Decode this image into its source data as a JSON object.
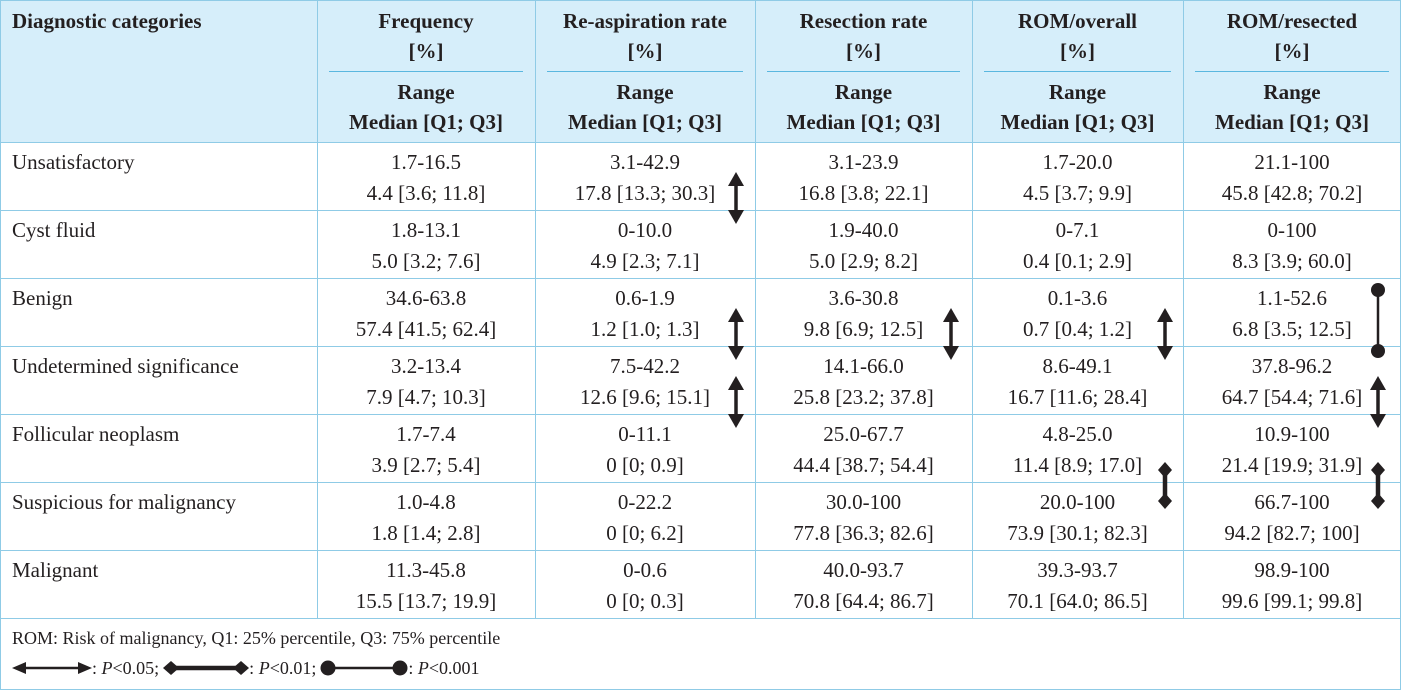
{
  "table": {
    "headers": [
      {
        "title": "Diagnostic categories",
        "unit": "",
        "sub1": "",
        "sub2": ""
      },
      {
        "title": "Frequency",
        "unit": "[%]",
        "sub1": "Range",
        "sub2": "Median [Q1; Q3]"
      },
      {
        "title": "Re-aspiration rate",
        "unit": "[%]",
        "sub1": "Range",
        "sub2": "Median [Q1; Q3]"
      },
      {
        "title": "Resection rate",
        "unit": "[%]",
        "sub1": "Range",
        "sub2": "Median [Q1; Q3]"
      },
      {
        "title": "ROM/overall",
        "unit": "[%]",
        "sub1": "Range",
        "sub2": "Median [Q1; Q3]"
      },
      {
        "title": "ROM/resected",
        "unit": "[%]",
        "sub1": "Range",
        "sub2": "Median [Q1; Q3]"
      }
    ],
    "rows": [
      {
        "category": "Unsatisfactory",
        "cells": [
          {
            "range": "1.7-16.5",
            "median": "4.4 [3.6; 11.8]"
          },
          {
            "range": "3.1-42.9",
            "median": "17.8 [13.3; 30.3]"
          },
          {
            "range": "3.1-23.9",
            "median": "16.8 [3.8; 22.1]"
          },
          {
            "range": "1.7-20.0",
            "median": "4.5 [3.7; 9.9]"
          },
          {
            "range": "21.1-100",
            "median": "45.8 [42.8; 70.2]"
          }
        ]
      },
      {
        "category": "Cyst fluid",
        "cells": [
          {
            "range": "1.8-13.1",
            "median": "5.0 [3.2; 7.6]"
          },
          {
            "range": "0-10.0",
            "median": "4.9 [2.3; 7.1]"
          },
          {
            "range": "1.9-40.0",
            "median": "5.0 [2.9; 8.2]"
          },
          {
            "range": "0-7.1",
            "median": "0.4 [0.1; 2.9]"
          },
          {
            "range": "0-100",
            "median": "8.3 [3.9; 60.0]"
          }
        ]
      },
      {
        "category": "Benign",
        "cells": [
          {
            "range": "34.6-63.8",
            "median": "57.4 [41.5; 62.4]"
          },
          {
            "range": "0.6-1.9",
            "median": "1.2 [1.0; 1.3]"
          },
          {
            "range": "3.6-30.8",
            "median": "9.8 [6.9; 12.5]"
          },
          {
            "range": "0.1-3.6",
            "median": "0.7 [0.4; 1.2]"
          },
          {
            "range": "1.1-52.6",
            "median": "6.8 [3.5; 12.5]"
          }
        ]
      },
      {
        "category": "Undetermined significance",
        "cells": [
          {
            "range": "3.2-13.4",
            "median": "7.9 [4.7; 10.3]"
          },
          {
            "range": "7.5-42.2",
            "median": "12.6 [9.6; 15.1]"
          },
          {
            "range": "14.1-66.0",
            "median": "25.8 [23.2; 37.8]"
          },
          {
            "range": "8.6-49.1",
            "median": "16.7 [11.6; 28.4]"
          },
          {
            "range": "37.8-96.2",
            "median": "64.7 [54.4; 71.6]"
          }
        ]
      },
      {
        "category": "Follicular neoplasm",
        "cells": [
          {
            "range": "1.7-7.4",
            "median": "3.9 [2.7; 5.4]"
          },
          {
            "range": "0-11.1",
            "median": "0 [0; 0.9]"
          },
          {
            "range": "25.0-67.7",
            "median": "44.4 [38.7; 54.4]"
          },
          {
            "range": "4.8-25.0",
            "median": "11.4 [8.9; 17.0]"
          },
          {
            "range": "10.9-100",
            "median": "21.4 [19.9; 31.9]"
          }
        ]
      },
      {
        "category": "Suspicious for malignancy",
        "cells": [
          {
            "range": "1.0-4.8",
            "median": "1.8 [1.4; 2.8]"
          },
          {
            "range": "0-22.2",
            "median": "0 [0; 6.2]"
          },
          {
            "range": "30.0-100",
            "median": "77.8 [36.3; 82.6]"
          },
          {
            "range": "20.0-100",
            "median": "73.9 [30.1; 82.3]"
          },
          {
            "range": "66.7-100",
            "median": "94.2 [82.7; 100]"
          }
        ]
      },
      {
        "category": "Malignant",
        "cells": [
          {
            "range": "11.3-45.8",
            "median": "15.5 [13.7; 19.9]"
          },
          {
            "range": "0-0.6",
            "median": "0 [0; 0.3]"
          },
          {
            "range": "40.0-93.7",
            "median": "70.8 [64.4; 86.7]"
          },
          {
            "range": "39.3-93.7",
            "median": "70.1 [64.0; 86.5]"
          },
          {
            "range": "98.9-100",
            "median": "99.6 [99.1; 99.8]"
          }
        ]
      }
    ],
    "significance_markers": [
      {
        "column": 2,
        "between_rows": [
          0,
          1
        ],
        "type": "arrow"
      },
      {
        "column": 2,
        "between_rows": [
          2,
          3
        ],
        "type": "arrow"
      },
      {
        "column": 2,
        "between_rows": [
          3,
          4
        ],
        "type": "arrow"
      },
      {
        "column": 3,
        "between_rows": [
          2,
          3
        ],
        "type": "arrow"
      },
      {
        "column": 4,
        "between_rows": [
          2,
          3
        ],
        "type": "arrow"
      },
      {
        "column": 4,
        "between_rows": [
          4,
          5
        ],
        "type": "diamond"
      },
      {
        "column": 5,
        "between_rows": [
          2,
          3
        ],
        "type": "circle"
      },
      {
        "column": 5,
        "between_rows": [
          3,
          4
        ],
        "type": "arrow"
      },
      {
        "column": 5,
        "between_rows": [
          4,
          5
        ],
        "type": "diamond"
      }
    ]
  },
  "footnote": {
    "abbreviations": "ROM: Risk of malignancy, Q1: 25% percentile, Q3: 75% percentile",
    "legend": [
      {
        "type": "arrow",
        "sep": ": ",
        "p": "P",
        "value": "<0.05;"
      },
      {
        "type": "diamond",
        "sep": ": ",
        "p": "P",
        "value": "<0.01;"
      },
      {
        "type": "circle",
        "sep": ": ",
        "p": "P",
        "value": "<0.001"
      }
    ]
  },
  "colors": {
    "header_bg": "#d6eefa",
    "rule": "#8fcbe6",
    "sub_rule": "#5ab7df",
    "text": "#231f20",
    "marker": "#231f20"
  }
}
